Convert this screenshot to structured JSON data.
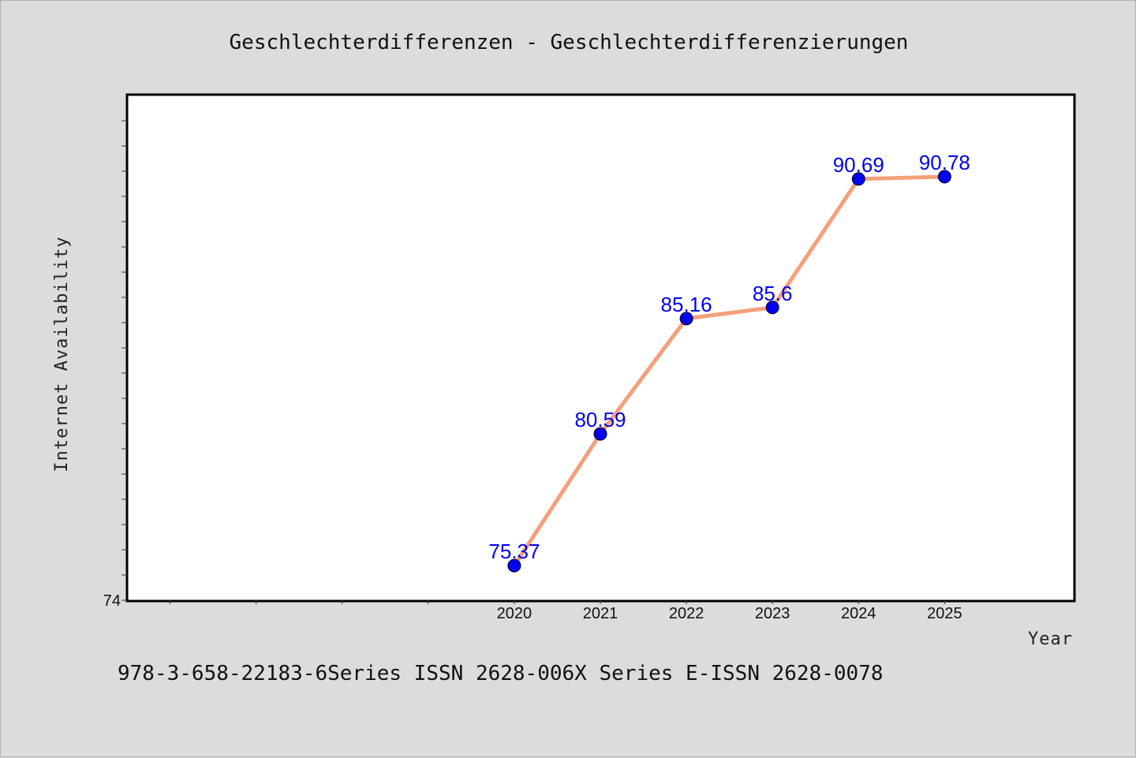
{
  "chart_data": {
    "type": "line",
    "title": "Geschlechterdifferenzen - Geschlechterdifferenzierungen",
    "xlabel": "Year",
    "ylabel": "Internet Availability",
    "x": [
      2020,
      2021,
      2022,
      2023,
      2024,
      2025
    ],
    "x_tick_labels": [
      "2020",
      "2021",
      "2022",
      "2023",
      "2024",
      "2025"
    ],
    "series": [
      {
        "values": [
          75.37,
          80.59,
          85.16,
          85.6,
          90.69,
          90.78
        ],
        "data_labels": [
          "75.37",
          "80.59",
          "85.16",
          "85.6",
          "90.69",
          "90.78"
        ],
        "line_color": "#f4a07a",
        "marker_color": "#0000ee"
      }
    ],
    "xlim": [
      2015.5,
      2026.5
    ],
    "ylim": [
      74,
      94
    ],
    "y_tick_labels": [
      "74"
    ],
    "grid": false,
    "legend": "none"
  },
  "footer": "978-3-658-22183-6Series ISSN 2628-006X Series E-ISSN 2628-0078"
}
